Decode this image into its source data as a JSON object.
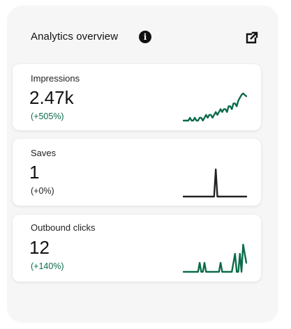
{
  "header": {
    "title": "Analytics overview",
    "info_icon": "info-icon",
    "external_icon": "external-link-icon"
  },
  "colors": {
    "positive": "#0b6b48",
    "neutral": "#222222",
    "text": "#111111",
    "panel_bg": "#f6f6f6",
    "card_bg": "#ffffff"
  },
  "metrics": [
    {
      "label": "Impressions",
      "value": "2.47k",
      "change": "(+505%)",
      "trend": "positive",
      "sparkline": [
        0,
        0,
        0,
        0,
        1,
        0,
        0,
        1,
        0,
        0,
        1,
        1,
        0,
        1,
        2,
        1,
        2,
        2,
        1,
        2,
        3,
        2,
        3,
        4,
        3,
        4,
        4,
        3,
        5,
        5,
        4,
        6,
        6,
        5,
        7,
        8,
        9,
        9.5,
        9,
        8.5
      ]
    },
    {
      "label": "Saves",
      "value": "1",
      "change": "(+0%)",
      "trend": "neutral",
      "sparkline": [
        0,
        0,
        0,
        0,
        0,
        0,
        0,
        0,
        0,
        0,
        0,
        0,
        0,
        0,
        0,
        0,
        0,
        0,
        0,
        0,
        1,
        0,
        0,
        0,
        0,
        0,
        0,
        0,
        0,
        0,
        0,
        0,
        0,
        0,
        0,
        0,
        0,
        0,
        0,
        0
      ]
    },
    {
      "label": "Outbound clicks",
      "value": "12",
      "change": "(+140%)",
      "trend": "positive",
      "sparkline": [
        0,
        0,
        0,
        0,
        0,
        0,
        0,
        0,
        0,
        0,
        1,
        0,
        0,
        1,
        0,
        0,
        0,
        0,
        0,
        0,
        0,
        0,
        0,
        1,
        0,
        0,
        0,
        0,
        0,
        0,
        0,
        1,
        2,
        0,
        0,
        2,
        0,
        3,
        2,
        1
      ]
    }
  ]
}
